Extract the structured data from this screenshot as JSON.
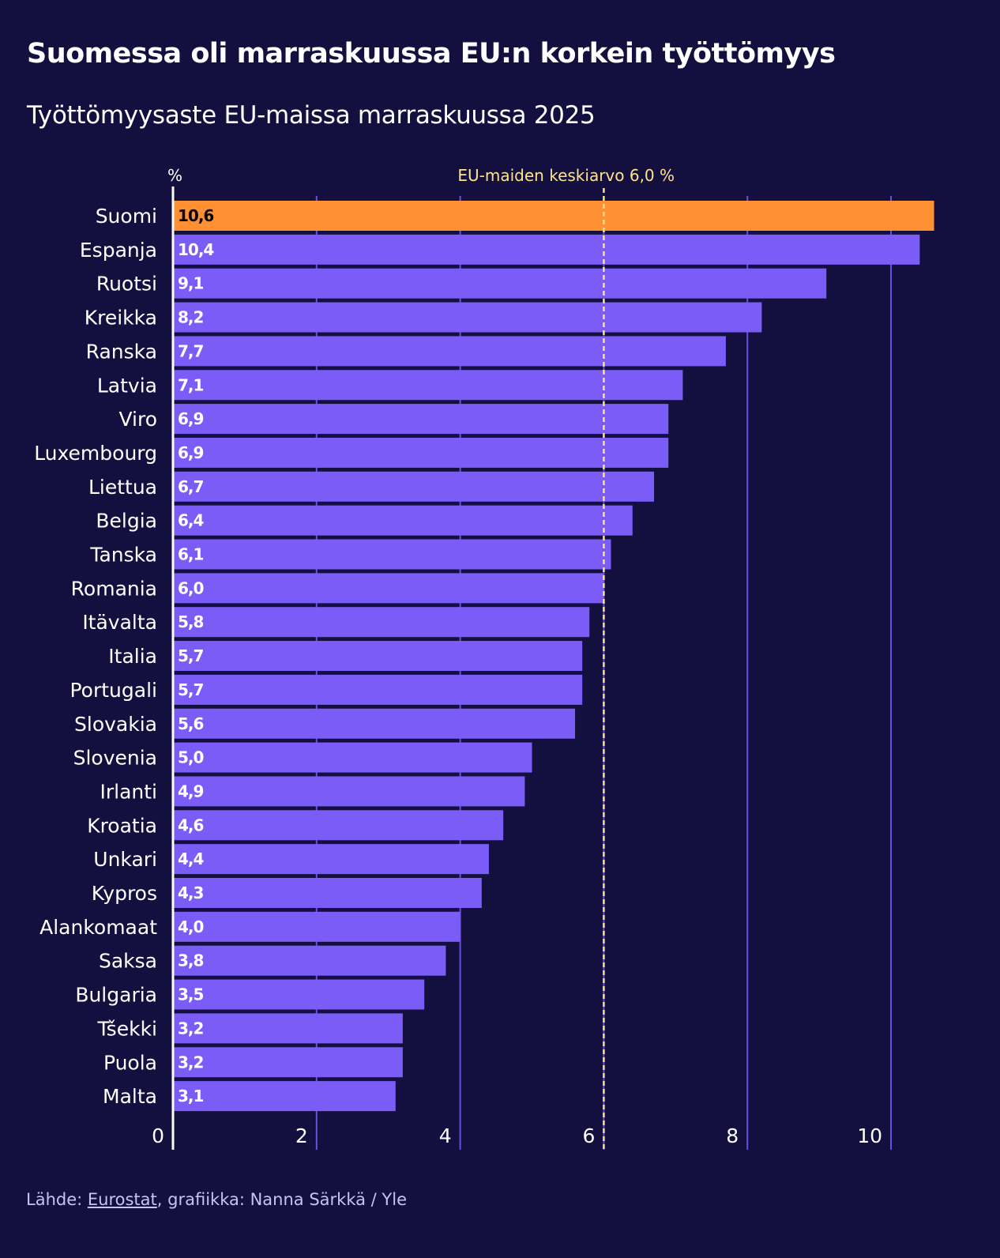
{
  "title": "Suomessa oli marraskuussa EU:n korkein työttömyys",
  "subtitle": "Työttömyysaste EU-maissa marraskuussa 2025",
  "source": {
    "prefix": "Lähde: ",
    "link": "Eurostat",
    "suffix": ", grafiikka: Nanna Särkkä / Yle"
  },
  "colors": {
    "background": "#13103f",
    "bar": "#7b5cf7",
    "highlight": "#ff9033",
    "grid": "#6a4fe0",
    "average": "#ffe28a"
  },
  "chart_data": {
    "type": "bar",
    "orientation": "horizontal",
    "title": "Suomessa oli marraskuussa EU:n korkein työttömyys",
    "subtitle": "Työttömyysaste EU-maissa marraskuussa 2025",
    "unit_label": "%",
    "xlim": [
      0,
      10.6
    ],
    "ticks": [
      0,
      2,
      4,
      6,
      8,
      10
    ],
    "tick_labels": [
      "0",
      "2",
      "4",
      "6",
      "8",
      "10"
    ],
    "grid": true,
    "highlight": "Suomi",
    "average": {
      "value": 6.0,
      "label": "EU-maiden keskiarvo 6,0 %"
    },
    "categories": [
      "Suomi",
      "Espanja",
      "Ruotsi",
      "Kreikka",
      "Ranska",
      "Latvia",
      "Viro",
      "Luxembourg",
      "Liettua",
      "Belgia",
      "Tanska",
      "Romania",
      "Itävalta",
      "Italia",
      "Portugali",
      "Slovakia",
      "Slovenia",
      "Irlanti",
      "Kroatia",
      "Unkari",
      "Kypros",
      "Alankomaat",
      "Saksa",
      "Bulgaria",
      "Tšekki",
      "Puola",
      "Malta"
    ],
    "values": [
      10.6,
      10.4,
      9.1,
      8.2,
      7.7,
      7.1,
      6.9,
      6.9,
      6.7,
      6.4,
      6.1,
      6.0,
      5.8,
      5.7,
      5.7,
      5.6,
      5.0,
      4.9,
      4.6,
      4.4,
      4.3,
      4.0,
      3.8,
      3.5,
      3.2,
      3.2,
      3.1
    ],
    "value_labels": [
      "10,6",
      "10,4",
      "9,1",
      "8,2",
      "7,7",
      "7,1",
      "6,9",
      "6,9",
      "6,7",
      "6,4",
      "6,1",
      "6,0",
      "5,8",
      "5,7",
      "5,7",
      "5,6",
      "5,0",
      "4,9",
      "4,6",
      "4,4",
      "4,3",
      "4,0",
      "3,8",
      "3,5",
      "3,2",
      "3,2",
      "3,1"
    ]
  }
}
